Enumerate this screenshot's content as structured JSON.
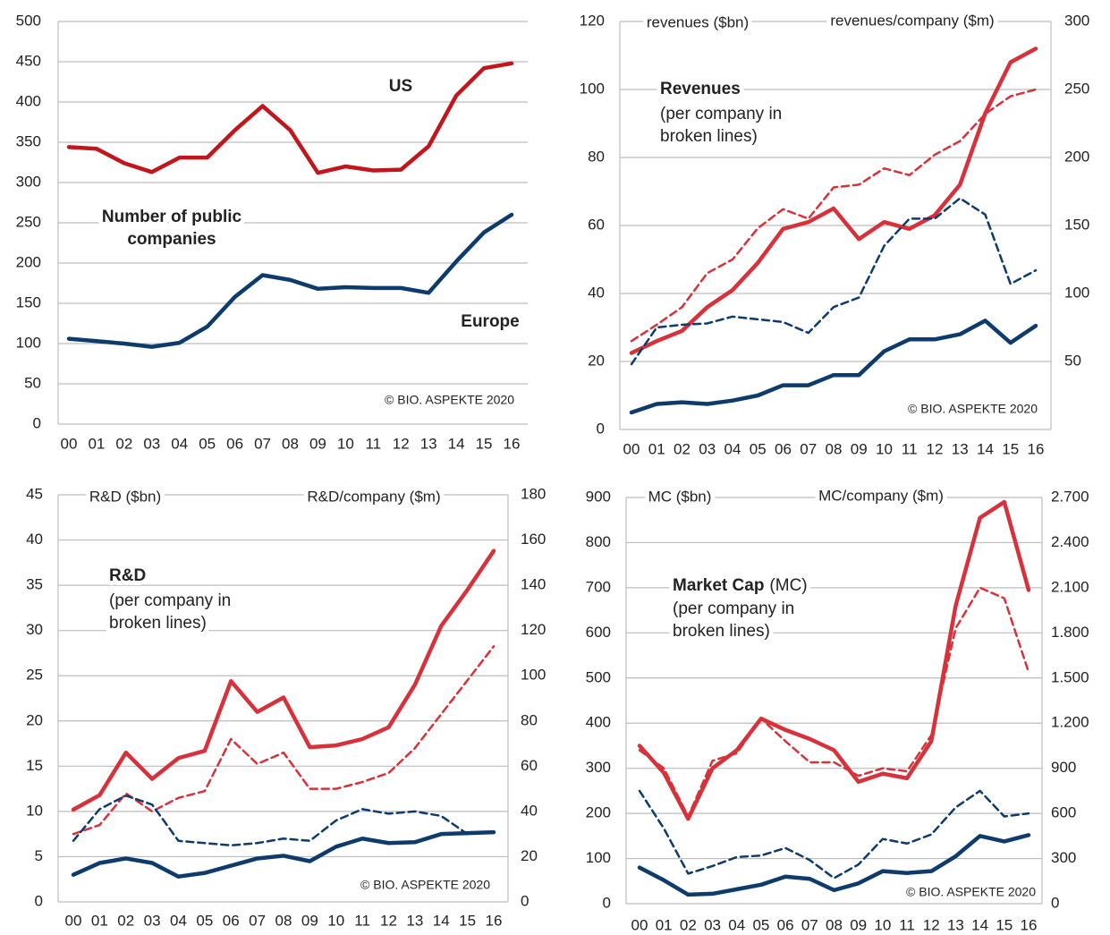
{
  "chart_data": [
    {
      "type": "line",
      "categories": [
        "00",
        "01",
        "02",
        "03",
        "04",
        "05",
        "06",
        "07",
        "08",
        "09",
        "10",
        "11",
        "12",
        "13",
        "14",
        "15",
        "16"
      ],
      "ylim": [
        0,
        500
      ],
      "yticks": [
        0,
        50,
        100,
        150,
        200,
        250,
        300,
        350,
        400,
        450,
        500
      ],
      "grid": true,
      "annotations": {
        "lines": [
          "Number of public",
          "companies"
        ],
        "credit": "© BIO. ASPEKTE 2020"
      },
      "series": [
        {
          "name": "US",
          "color": "#c0161c",
          "dash": false,
          "values": [
            344,
            342,
            324,
            313,
            331,
            331,
            365,
            395,
            365,
            312,
            320,
            315,
            316,
            345,
            408,
            442,
            448
          ]
        },
        {
          "name": "Europe",
          "color": "#0d3b6b",
          "dash": false,
          "values": [
            106,
            103,
            100,
            96,
            101,
            121,
            158,
            185,
            179,
            168,
            170,
            169,
            169,
            163,
            202,
            238,
            260
          ]
        }
      ]
    },
    {
      "type": "line",
      "categories": [
        "00",
        "01",
        "02",
        "03",
        "04",
        "05",
        "06",
        "07",
        "08",
        "09",
        "10",
        "11",
        "12",
        "13",
        "14",
        "15",
        "16"
      ],
      "ylim": [
        0,
        120
      ],
      "yticks": [
        0,
        20,
        40,
        60,
        80,
        100,
        120
      ],
      "y2lim": [
        0,
        300
      ],
      "y2ticks": [
        50,
        100,
        150,
        200,
        250,
        300
      ],
      "grid": true,
      "title": "Revenues",
      "annotations": {
        "ylabel": "revenues ($bn)",
        "y2label": "revenues/company ($m)",
        "lines": [
          "(per company in",
          "broken lines)"
        ],
        "credit": "© BIO. ASPEKTE 2020"
      },
      "series": [
        {
          "color": "#d7323b",
          "dash": false,
          "values": [
            22.5,
            26,
            29,
            36,
            41,
            49,
            59,
            61,
            65,
            56,
            61,
            59,
            63,
            72,
            93,
            108,
            112
          ]
        },
        {
          "color": "#d7323b",
          "dash": true,
          "axis": "y2",
          "values": [
            65,
            77,
            90,
            115,
            125,
            148,
            162,
            155,
            178,
            180,
            192,
            187,
            202,
            212,
            232,
            245,
            250
          ]
        },
        {
          "color": "#0d3b6b",
          "dash": false,
          "values": [
            5,
            7.5,
            8,
            7.5,
            8.5,
            10,
            13,
            13,
            16,
            16,
            23,
            26.5,
            26.5,
            28,
            32,
            25.5,
            30.5
          ]
        },
        {
          "color": "#0d3b6b",
          "dash": true,
          "axis": "y2",
          "values": [
            48,
            75,
            77,
            78,
            83,
            81,
            79,
            71,
            90,
            97,
            135,
            155,
            155,
            170,
            158,
            107,
            117
          ]
        }
      ]
    },
    {
      "type": "line",
      "categories": [
        "00",
        "01",
        "02",
        "03",
        "04",
        "05",
        "06",
        "07",
        "08",
        "09",
        "10",
        "11",
        "12",
        "13",
        "14",
        "15",
        "16"
      ],
      "ylim": [
        0,
        45
      ],
      "yticks": [
        0,
        5,
        10,
        15,
        20,
        25,
        30,
        35,
        40,
        45
      ],
      "y2lim": [
        0,
        180
      ],
      "y2ticks": [
        0,
        20,
        40,
        60,
        80,
        100,
        120,
        140,
        160,
        180
      ],
      "grid": true,
      "title": "R&D",
      "annotations": {
        "ylabel": "R&D ($bn)",
        "y2label": "R&D/company ($m)",
        "lines": [
          "(per company in",
          "broken lines)"
        ],
        "credit": "© BIO. ASPEKTE 2020"
      },
      "series": [
        {
          "color": "#d7323b",
          "dash": false,
          "values": [
            10.2,
            11.8,
            16.5,
            13.6,
            15.9,
            16.7,
            24.4,
            21,
            22.6,
            17.1,
            17.3,
            18,
            19.3,
            24,
            30.5,
            34.5,
            38.8
          ]
        },
        {
          "color": "#d7323b",
          "dash": true,
          "axis": "y2",
          "values": [
            30,
            34,
            48,
            40,
            46,
            49,
            72,
            61,
            66,
            50,
            50,
            53,
            57,
            68,
            83,
            98,
            113
          ]
        },
        {
          "color": "#0d3b6b",
          "dash": false,
          "values": [
            3,
            4.3,
            4.8,
            4.3,
            2.8,
            3.2,
            4,
            4.8,
            5.1,
            4.5,
            6.1,
            7,
            6.5,
            6.6,
            7.5,
            7.6,
            7.7
          ]
        },
        {
          "color": "#0d3b6b",
          "dash": true,
          "axis": "y2",
          "values": [
            27,
            41,
            47,
            43,
            27,
            26,
            25,
            26,
            28,
            27,
            36,
            41,
            39,
            40,
            38,
            30,
            31
          ]
        }
      ]
    },
    {
      "type": "line",
      "categories": [
        "00",
        "01",
        "02",
        "03",
        "04",
        "05",
        "06",
        "07",
        "08",
        "09",
        "10",
        "11",
        "12",
        "13",
        "14",
        "15",
        "16"
      ],
      "ylim": [
        0,
        900
      ],
      "yticks": [
        0,
        100,
        200,
        300,
        400,
        500,
        600,
        700,
        800,
        900
      ],
      "y2lim": [
        0,
        2700
      ],
      "y2ticks": [
        0,
        300,
        600,
        900,
        {
          "value": 1200,
          "label": "1.200"
        },
        {
          "value": 1500,
          "label": "1.500"
        },
        {
          "value": 1800,
          "label": "1.800"
        },
        {
          "value": 2100,
          "label": "2.100"
        },
        {
          "value": 2400,
          "label": "2.400"
        },
        {
          "value": 2700,
          "label": "2.700"
        }
      ],
      "grid": true,
      "title": "Market Cap",
      "title_suffix": "(MC)",
      "annotations": {
        "ylabel": "MC ($bn)",
        "y2label": "MC/company ($m)",
        "lines": [
          "(per company in",
          "broken lines)"
        ],
        "credit": "© BIO. ASPEKTE 2020"
      },
      "series": [
        {
          "color": "#d7323b",
          "dash": false,
          "values": [
            350,
            290,
            188,
            300,
            340,
            410,
            385,
            365,
            340,
            270,
            288,
            278,
            360,
            660,
            855,
            890,
            695
          ]
        },
        {
          "color": "#d7323b",
          "dash": true,
          "axis": "y2",
          "values": [
            1020,
            900,
            580,
            950,
            1000,
            1230,
            1080,
            940,
            940,
            850,
            900,
            880,
            1120,
            1830,
            2100,
            2030,
            1540
          ]
        },
        {
          "color": "#0d3b6b",
          "dash": false,
          "values": [
            80,
            52,
            20,
            22,
            32,
            42,
            60,
            55,
            30,
            45,
            72,
            68,
            72,
            105,
            150,
            138,
            152
          ]
        },
        {
          "color": "#0d3b6b",
          "dash": true,
          "axis": "y2",
          "values": [
            750,
            500,
            200,
            250,
            310,
            320,
            370,
            290,
            170,
            260,
            430,
            400,
            460,
            640,
            750,
            580,
            600
          ]
        }
      ]
    }
  ]
}
